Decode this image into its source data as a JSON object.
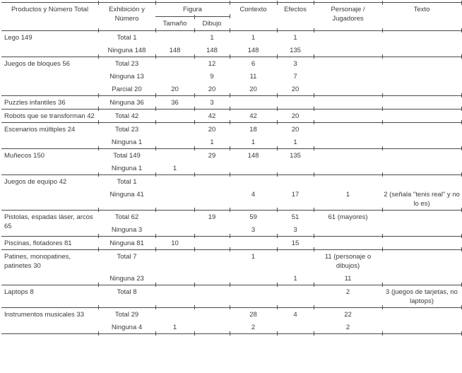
{
  "table": {
    "headers": {
      "col_products": "Productos y Número Total",
      "col_exhibition": "Exhibición y Número",
      "col_figura": "Figura",
      "col_tamano": "Tamaño",
      "col_dibujo": "Dibujo",
      "col_contexto": "Contexto",
      "col_efectos": "Efectos",
      "col_personaje": "Personaje / Jugadores",
      "col_texto": "Texto"
    },
    "groups": [
      {
        "product": "Lego 149",
        "rows": [
          {
            "exhibicion": "Total 1",
            "tamano": "",
            "dibujo": "1",
            "contexto": "1",
            "efectos": "1",
            "personaje": "",
            "texto": ""
          },
          {
            "exhibicion": "Ninguna 148",
            "tamano": "148",
            "dibujo": "148",
            "contexto": "148",
            "efectos": "135",
            "personaje": "",
            "texto": ""
          }
        ]
      },
      {
        "product": "Juegos de bloques 56",
        "rows": [
          {
            "exhibicion": "Total 23",
            "tamano": "",
            "dibujo": "12",
            "contexto": "6",
            "efectos": "3",
            "personaje": "",
            "texto": ""
          },
          {
            "exhibicion": "Ninguna 13",
            "tamano": "",
            "dibujo": "9",
            "contexto": "11",
            "efectos": "7",
            "personaje": "",
            "texto": ""
          },
          {
            "exhibicion": "Parcial 20",
            "tamano": "20",
            "dibujo": "20",
            "contexto": "20",
            "efectos": "20",
            "personaje": "",
            "texto": ""
          }
        ]
      },
      {
        "product": "Puzzles infantiles 36",
        "rows": [
          {
            "exhibicion": "Ninguna 36",
            "tamano": "36",
            "dibujo": "3",
            "contexto": "",
            "efectos": "",
            "personaje": "",
            "texto": ""
          }
        ]
      },
      {
        "product": "Robots que se transforman 42",
        "rows": [
          {
            "exhibicion": "Total 42",
            "tamano": "",
            "dibujo": "42",
            "contexto": "42",
            "efectos": "20",
            "personaje": "",
            "texto": ""
          }
        ]
      },
      {
        "product": "Escenarios múltiples 24",
        "rows": [
          {
            "exhibicion": "Total 23",
            "tamano": "",
            "dibujo": "20",
            "contexto": "18",
            "efectos": "20",
            "personaje": "",
            "texto": ""
          },
          {
            "exhibicion": "Ninguna 1",
            "tamano": "",
            "dibujo": "1",
            "contexto": "1",
            "efectos": "1",
            "personaje": "",
            "texto": ""
          }
        ]
      },
      {
        "product": "Muñecos 150",
        "rows": [
          {
            "exhibicion": "Total 149",
            "tamano": "",
            "dibujo": "29",
            "contexto": "148",
            "efectos": "135",
            "personaje": "",
            "texto": ""
          },
          {
            "exhibicion": "Ninguna 1",
            "tamano": "1",
            "dibujo": "",
            "contexto": "",
            "efectos": "",
            "personaje": "",
            "texto": ""
          }
        ]
      },
      {
        "product": "Juegos de equipo 42",
        "rows": [
          {
            "exhibicion": "Total 1",
            "tamano": "",
            "dibujo": "",
            "contexto": "",
            "efectos": "",
            "personaje": "",
            "texto": ""
          },
          {
            "exhibicion": "Ninguna 41",
            "tamano": "",
            "dibujo": "",
            "contexto": "4",
            "efectos": "17",
            "personaje": "1",
            "texto": "2 (señala \"tenis real\" y no lo es)"
          }
        ]
      },
      {
        "product": "Pistolas, espadas láser, arcos 65",
        "rows": [
          {
            "exhibicion": "Total 62",
            "tamano": "",
            "dibujo": "19",
            "contexto": "59",
            "efectos": "51",
            "personaje": "61 (mayores)",
            "texto": ""
          },
          {
            "exhibicion": "Ninguna 3",
            "tamano": "",
            "dibujo": "",
            "contexto": "3",
            "efectos": "3",
            "personaje": "",
            "texto": ""
          }
        ]
      },
      {
        "product": "Piscinas, flotadores 81",
        "rows": [
          {
            "exhibicion": "Ninguna 81",
            "tamano": "10",
            "dibujo": "",
            "contexto": "",
            "efectos": "15",
            "personaje": "",
            "texto": ""
          }
        ]
      },
      {
        "product": "Patines, monopatines, patinetes 30",
        "rows": [
          {
            "exhibicion": "Total 7",
            "tamano": "",
            "dibujo": "",
            "contexto": "1",
            "efectos": "",
            "personaje": "11 (personaje o dibujos)",
            "texto": ""
          },
          {
            "exhibicion": "Ninguna 23",
            "tamano": "",
            "dibujo": "",
            "contexto": "",
            "efectos": "1",
            "personaje": "11",
            "texto": ""
          }
        ]
      },
      {
        "product": "Laptops 8",
        "rows": [
          {
            "exhibicion": "Total 8",
            "tamano": "",
            "dibujo": "",
            "contexto": "",
            "efectos": "",
            "personaje": "2",
            "texto": "3 (juegos de tarjetas, no laptops)"
          }
        ]
      },
      {
        "product": "Instrumentos musicales 33",
        "rows": [
          {
            "exhibicion": "Total 29",
            "tamano": "",
            "dibujo": "",
            "contexto": "28",
            "efectos": "4",
            "personaje": "22",
            "texto": ""
          },
          {
            "exhibicion": "Ninguna 4",
            "tamano": "1",
            "dibujo": "",
            "contexto": "2",
            "efectos": "",
            "personaje": "2",
            "texto": ""
          }
        ]
      }
    ]
  }
}
